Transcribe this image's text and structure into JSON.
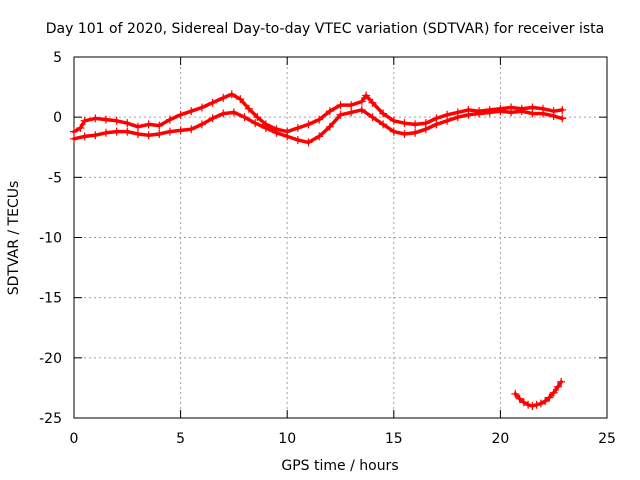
{
  "chart_data": {
    "type": "scatter",
    "title": "Day 101 of 2020, Sidereal Day-to-day VTEC variation (SDTVAR) for receiver ista",
    "xlabel": "GPS time / hours",
    "ylabel": "SDTVAR / TECUs",
    "xlim": [
      0,
      25
    ],
    "ylim": [
      -25,
      5
    ],
    "xticks": [
      0,
      5,
      10,
      15,
      20,
      25
    ],
    "yticks": [
      -25,
      -20,
      -15,
      -10,
      -5,
      0,
      5
    ],
    "grid": true,
    "marker": "+",
    "series": [
      {
        "name": "main band upper",
        "color": "#ff0000",
        "points": [
          [
            0.0,
            -1.2
          ],
          [
            0.3,
            -0.9
          ],
          [
            0.5,
            -0.3
          ],
          [
            1.0,
            -0.1
          ],
          [
            1.5,
            -0.2
          ],
          [
            2.0,
            -0.3
          ],
          [
            2.5,
            -0.5
          ],
          [
            3.0,
            -0.8
          ],
          [
            3.5,
            -0.6
          ],
          [
            4.0,
            -0.7
          ],
          [
            4.5,
            -0.2
          ],
          [
            5.0,
            0.2
          ],
          [
            5.5,
            0.5
          ],
          [
            6.0,
            0.8
          ],
          [
            6.5,
            1.2
          ],
          [
            7.0,
            1.6
          ],
          [
            7.4,
            1.9
          ],
          [
            7.8,
            1.5
          ],
          [
            8.2,
            0.7
          ],
          [
            8.6,
            0.0
          ],
          [
            9.0,
            -0.6
          ],
          [
            9.5,
            -1.0
          ],
          [
            10.0,
            -1.2
          ],
          [
            10.5,
            -0.9
          ],
          [
            11.0,
            -0.6
          ],
          [
            11.5,
            -0.2
          ],
          [
            12.0,
            0.5
          ],
          [
            12.5,
            1.0
          ],
          [
            13.0,
            1.0
          ],
          [
            13.5,
            1.3
          ],
          [
            13.7,
            1.8
          ],
          [
            14.0,
            1.2
          ],
          [
            14.5,
            0.3
          ],
          [
            15.0,
            -0.3
          ],
          [
            15.5,
            -0.5
          ],
          [
            16.0,
            -0.6
          ],
          [
            16.5,
            -0.5
          ],
          [
            17.0,
            -0.1
          ],
          [
            17.5,
            0.2
          ],
          [
            18.0,
            0.4
          ],
          [
            18.5,
            0.6
          ],
          [
            19.0,
            0.5
          ],
          [
            19.5,
            0.6
          ],
          [
            20.0,
            0.7
          ],
          [
            20.5,
            0.8
          ],
          [
            21.0,
            0.7
          ],
          [
            21.5,
            0.8
          ],
          [
            22.0,
            0.7
          ],
          [
            22.5,
            0.5
          ],
          [
            22.9,
            0.6
          ]
        ]
      },
      {
        "name": "main band lower",
        "color": "#ff0000",
        "points": [
          [
            0.0,
            -1.8
          ],
          [
            0.5,
            -1.6
          ],
          [
            1.0,
            -1.5
          ],
          [
            1.5,
            -1.3
          ],
          [
            2.0,
            -1.2
          ],
          [
            2.5,
            -1.2
          ],
          [
            3.0,
            -1.4
          ],
          [
            3.5,
            -1.5
          ],
          [
            4.0,
            -1.4
          ],
          [
            4.5,
            -1.2
          ],
          [
            5.0,
            -1.1
          ],
          [
            5.5,
            -1.0
          ],
          [
            6.0,
            -0.6
          ],
          [
            6.5,
            -0.1
          ],
          [
            7.0,
            0.3
          ],
          [
            7.5,
            0.4
          ],
          [
            8.0,
            0.0
          ],
          [
            8.5,
            -0.5
          ],
          [
            9.0,
            -0.9
          ],
          [
            9.5,
            -1.3
          ],
          [
            10.0,
            -1.6
          ],
          [
            10.5,
            -1.9
          ],
          [
            11.0,
            -2.1
          ],
          [
            11.5,
            -1.6
          ],
          [
            12.0,
            -0.8
          ],
          [
            12.5,
            0.2
          ],
          [
            13.0,
            0.4
          ],
          [
            13.5,
            0.6
          ],
          [
            14.0,
            0.0
          ],
          [
            14.5,
            -0.6
          ],
          [
            15.0,
            -1.2
          ],
          [
            15.5,
            -1.4
          ],
          [
            16.0,
            -1.3
          ],
          [
            16.5,
            -1.0
          ],
          [
            17.0,
            -0.6
          ],
          [
            17.5,
            -0.3
          ],
          [
            18.0,
            0.0
          ],
          [
            18.5,
            0.2
          ],
          [
            19.0,
            0.3
          ],
          [
            19.5,
            0.4
          ],
          [
            20.0,
            0.5
          ],
          [
            20.5,
            0.4
          ],
          [
            21.0,
            0.5
          ],
          [
            21.5,
            0.3
          ],
          [
            22.0,
            0.3
          ],
          [
            22.5,
            0.1
          ],
          [
            22.9,
            -0.1
          ]
        ]
      },
      {
        "name": "low arc",
        "color": "#ff0000",
        "points": [
          [
            20.7,
            -23.0
          ],
          [
            20.9,
            -23.4
          ],
          [
            21.1,
            -23.7
          ],
          [
            21.3,
            -23.9
          ],
          [
            21.5,
            -24.0
          ],
          [
            21.7,
            -23.9
          ],
          [
            21.9,
            -23.8
          ],
          [
            22.1,
            -23.6
          ],
          [
            22.3,
            -23.3
          ],
          [
            22.5,
            -22.9
          ],
          [
            22.7,
            -22.4
          ],
          [
            22.85,
            -22.0
          ]
        ]
      }
    ]
  }
}
